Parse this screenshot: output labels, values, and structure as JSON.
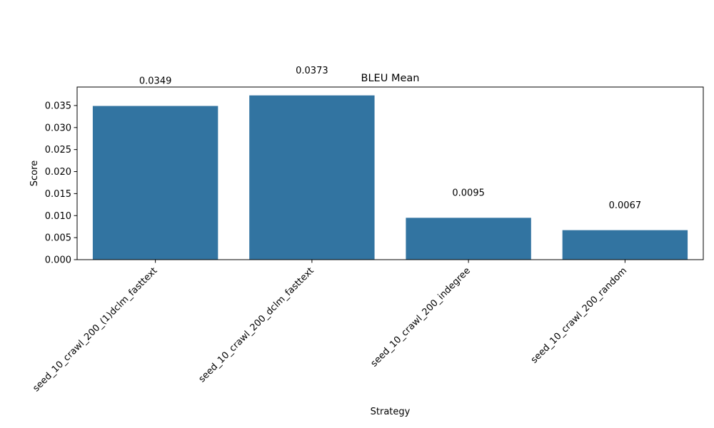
{
  "chart_data": {
    "type": "bar",
    "title": "BLEU Mean",
    "xlabel": "Strategy",
    "ylabel": "Score",
    "categories": [
      "seed_10_crawl_200_(1)dclm_fasttext",
      "seed_10_crawl_200_dclm_fasttext",
      "seed_10_crawl_200_indegree",
      "seed_10_crawl_200_random"
    ],
    "values": [
      0.0349,
      0.0373,
      0.0095,
      0.0067
    ],
    "value_labels": [
      "0.0349",
      "0.0373",
      "0.0095",
      "0.0067"
    ],
    "ylim": [
      0,
      0.0392
    ],
    "yticks": [
      0.0,
      0.005,
      0.01,
      0.015,
      0.02,
      0.025,
      0.03,
      0.035
    ],
    "ytick_labels": [
      "0.000",
      "0.005",
      "0.010",
      "0.015",
      "0.020",
      "0.025",
      "0.030",
      "0.035"
    ],
    "grid": false,
    "bar_color": "#3274a1"
  }
}
